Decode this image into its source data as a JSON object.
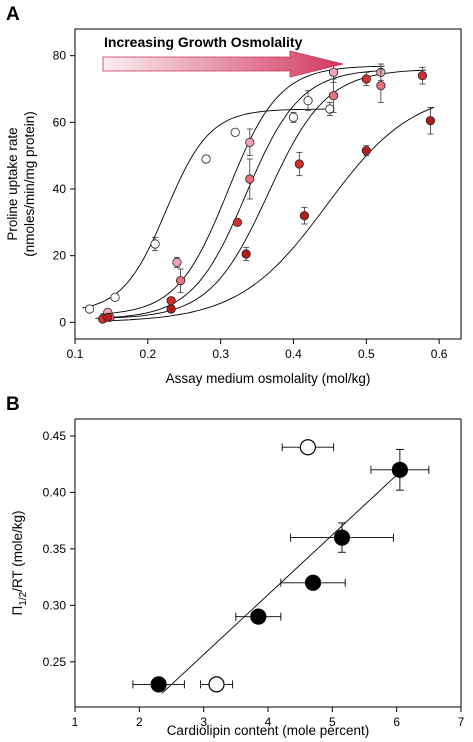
{
  "figure": {
    "panel_a_label": "A",
    "panel_b_label": "B",
    "colors": {
      "axis": "#000000",
      "marker_edge": "#222222",
      "arrow_light": "#fbeef2",
      "arrow_dark": "#d0385f"
    }
  },
  "chart_data": [
    {
      "type": "scatter",
      "panel": "A",
      "annotation": "Increasing Growth Osmolality",
      "xlabel": "Assay medium osmolality (mol/kg)",
      "ylabel_line1": "Proline uptake rate",
      "ylabel_line2": "(nmoles/min/mg protein)",
      "xlim": [
        0.1,
        0.63
      ],
      "ylim": [
        -5,
        88
      ],
      "xticks": [
        0.1,
        0.2,
        0.3,
        0.4,
        0.5,
        0.6
      ],
      "xtick_labels": [
        "0.1",
        "0.2",
        "0.3",
        "0.4",
        "0.5",
        "0.6"
      ],
      "yticks": [
        0,
        20,
        40,
        60,
        80
      ],
      "ytick_labels": [
        "0",
        "20",
        "40",
        "60",
        "80"
      ],
      "grid": false,
      "series": [
        {
          "color": "#ffffff",
          "x": [
            0.12,
            0.155,
            0.21,
            0.28,
            0.32,
            0.4,
            0.42,
            0.45
          ],
          "y": [
            4,
            7.5,
            23.5,
            49,
            57,
            61.5,
            66.5,
            64
          ],
          "yerr": [
            0.5,
            0.5,
            2,
            1,
            1,
            1.5,
            3,
            2
          ],
          "fit": {
            "bottom": 3,
            "top": 64,
            "x50": 0.225,
            "slope": 0.03
          }
        },
        {
          "color": "#f0a4b8",
          "x": [
            0.145,
            0.24,
            0.34,
            0.455,
            0.52
          ],
          "y": [
            3,
            18,
            54,
            75,
            75
          ],
          "yerr": [
            0.5,
            1.5,
            4,
            3,
            2.5
          ],
          "fit": {
            "bottom": 2,
            "top": 77,
            "x50": 0.31,
            "slope": 0.035
          }
        },
        {
          "color": "#e8707c",
          "x": [
            0.148,
            0.245,
            0.34,
            0.455,
            0.52
          ],
          "y": [
            1.5,
            12.5,
            43,
            68,
            71
          ],
          "yerr": [
            0.5,
            3.5,
            6,
            5,
            5
          ],
          "fit": {
            "bottom": 1,
            "top": 76,
            "x50": 0.335,
            "slope": 0.037
          }
        },
        {
          "color": "#d32f2f",
          "x": [
            0.138,
            0.232,
            0.323,
            0.408,
            0.5,
            0.577
          ],
          "y": [
            1,
            6.5,
            30,
            47.5,
            73,
            74
          ],
          "yerr": [
            0.5,
            1,
            0.5,
            3.5,
            2,
            2.5
          ],
          "fit": {
            "bottom": 1,
            "top": 76,
            "x50": 0.365,
            "slope": 0.04
          }
        },
        {
          "color": "#b71c1c",
          "x": [
            0.145,
            0.232,
            0.335,
            0.415,
            0.5,
            0.588
          ],
          "y": [
            1.5,
            4,
            20.5,
            32,
            51.5,
            60.5
          ],
          "yerr": [
            0.5,
            1,
            2,
            2.5,
            1.5,
            4
          ],
          "fit": {
            "bottom": 0,
            "top": 70,
            "x50": 0.445,
            "slope": 0.06
          }
        }
      ]
    },
    {
      "type": "scatter",
      "panel": "B",
      "xlabel": "Cardiolipin content (mole percent)",
      "ylabel_main": "Π",
      "ylabel_sub": "1/2",
      "ylabel_rest": "/RT (mole/kg)",
      "xlim": [
        1,
        7
      ],
      "ylim": [
        0.21,
        0.465
      ],
      "xticks": [
        1,
        2,
        3,
        4,
        5,
        6,
        7
      ],
      "xtick_labels": [
        "1",
        "2",
        "3",
        "4",
        "5",
        "6",
        "7"
      ],
      "yticks": [
        0.25,
        0.3,
        0.35,
        0.4,
        0.45
      ],
      "ytick_labels": [
        "0.25",
        "0.30",
        "0.35",
        "0.40",
        "0.45"
      ],
      "grid": false,
      "filled_points": {
        "x": [
          2.3,
          3.85,
          4.7,
          5.15,
          6.05
        ],
        "y": [
          0.23,
          0.29,
          0.32,
          0.36,
          0.42
        ],
        "xerr": [
          0.4,
          0.35,
          0.5,
          0.8,
          0.45
        ],
        "yerr": [
          0,
          0,
          0,
          0.013,
          0.018
        ]
      },
      "open_points": {
        "x": [
          3.2,
          4.62
        ],
        "y": [
          0.23,
          0.44
        ],
        "xerr": [
          0.25,
          0.4
        ],
        "yerr": [
          0,
          0
        ]
      },
      "fit_line": {
        "x": [
          2.35,
          6.05
        ],
        "y": [
          0.222,
          0.418
        ]
      }
    }
  ]
}
